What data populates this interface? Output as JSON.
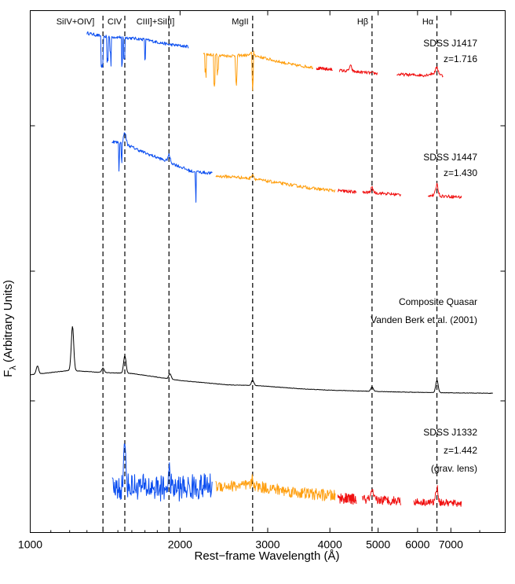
{
  "chart_data": {
    "type": "line",
    "xlabel": "Rest−frame Wavelength (Å)",
    "ylabel_main": "F",
    "ylabel_sub": "λ",
    "ylabel_rest": " (Arbitrary Units)",
    "x_scale": "log",
    "xlim": [
      1000,
      9000
    ],
    "x_ticks": [
      1000,
      2000,
      3000,
      4000,
      5000,
      6000,
      7000
    ],
    "x_tick_labels": [
      "1000",
      "2000",
      "3000",
      "4000",
      "5000",
      "6000",
      "7000"
    ],
    "grid": false,
    "lines": [
      {
        "label": "SiIV+OIV]",
        "wavelength": 1400
      },
      {
        "label": "CIV",
        "wavelength": 1549
      },
      {
        "label": "CIII]+SiIII]",
        "wavelength": 1900
      },
      {
        "label": "MgII",
        "wavelength": 2798
      },
      {
        "label": "Hβ",
        "wavelength": 4861
      },
      {
        "label": "Hα",
        "wavelength": 6563
      }
    ],
    "line_labels": {
      "siiv": "SiIV+OIV]",
      "civ": "CIV",
      "ciii": "CIII]+SiIII]",
      "mgii": "MgII",
      "hbeta": "Hβ",
      "halpha": "Hα"
    },
    "segment_colors": {
      "blue": "#0a4df0",
      "orange": "#ff9f0f",
      "red": "#f01010",
      "black": "#000000"
    },
    "series": [
      {
        "name": "SDSS J1417",
        "label_lines": [
          "SDSS J1417",
          "z=1.716"
        ],
        "segments": [
          {
            "color": "blue",
            "x_range": [
              1300,
              2080
            ],
            "points": [
              [
                1300,
                0.0
              ],
              [
                1400,
                -0.8
              ],
              [
                1549,
                -1.0
              ],
              [
                1700,
                -1.5
              ],
              [
                1900,
                -2.6
              ],
              [
                2080,
                -3.1
              ]
            ],
            "absorption": [
              1390,
              1398,
              1430,
              1450,
              1530,
              1545,
              1700
            ]
          },
          {
            "color": "orange",
            "x_range": [
              2230,
              3700
            ],
            "points": [
              [
                2230,
                -4.8
              ],
              [
                2500,
                -5.2
              ],
              [
                2798,
                -5.0
              ],
              [
                3100,
                -6.3
              ],
              [
                3400,
                -7.3
              ],
              [
                3700,
                -7.8
              ]
            ],
            "absorption": [
              2250,
              2344,
              2382,
              2586,
              2600,
              2796,
              2803
            ]
          },
          {
            "color": "red",
            "x_range": [
              3760,
              4050
            ],
            "points": [
              [
                3760,
                -8.0
              ],
              [
                4050,
                -8.3
              ]
            ]
          },
          {
            "color": "red",
            "x_range": [
              4180,
              4980
            ],
            "points": [
              [
                4180,
                -8.5
              ],
              [
                4861,
                -9.1
              ],
              [
                4980,
                -9.2
              ]
            ]
          },
          {
            "color": "red",
            "x_range": [
              5450,
              6750
            ],
            "points": [
              [
                5450,
                -9.4
              ],
              [
                6200,
                -9.6
              ],
              [
                6563,
                -9.0
              ],
              [
                6750,
                -9.8
              ]
            ]
          }
        ],
        "peaks": [
          {
            "x": 2798,
            "h": 0.9
          },
          {
            "x": 4400,
            "h": 1.2
          },
          {
            "x": 6563,
            "h": 1.2
          }
        ]
      },
      {
        "name": "SDSS J1447",
        "label_lines": [
          "SDSS J1447",
          "z=1.430"
        ],
        "segments": [
          {
            "color": "blue",
            "x_range": [
              1460,
              2320
            ],
            "points": [
              [
                1460,
                0.0
              ],
              [
                1549,
                -0.5
              ],
              [
                1700,
                -2.5
              ],
              [
                1900,
                -4.5
              ],
              [
                2100,
                -6.5
              ],
              [
                2320,
                -7.0
              ]
            ],
            "absorption": [
              1510,
              1525,
              2150
            ]
          },
          {
            "color": "orange",
            "x_range": [
              2360,
              4100
            ],
            "points": [
              [
                2360,
                -7.6
              ],
              [
                2600,
                -7.8
              ],
              [
                2798,
                -8.2
              ],
              [
                3200,
                -9.2
              ],
              [
                3700,
                -10.3
              ],
              [
                4100,
                -10.8
              ]
            ]
          },
          {
            "color": "red",
            "x_range": [
              4150,
              4520
            ],
            "points": [
              [
                4150,
                -10.8
              ],
              [
                4520,
                -11.1
              ]
            ]
          },
          {
            "color": "red",
            "x_range": [
              4650,
              5550
            ],
            "points": [
              [
                4650,
                -11.2
              ],
              [
                4861,
                -11.2
              ],
              [
                5550,
                -11.7
              ]
            ]
          },
          {
            "color": "red",
            "x_range": [
              6300,
              7350
            ],
            "points": [
              [
                6300,
                -11.8
              ],
              [
                6563,
                -11.9
              ],
              [
                7350,
                -12.2
              ]
            ]
          }
        ],
        "peaks": [
          {
            "x": 1549,
            "h": 2.5
          },
          {
            "x": 1900,
            "h": 1.5
          },
          {
            "x": 2798,
            "h": 1.0
          },
          {
            "x": 4861,
            "h": 1.0
          },
          {
            "x": 6563,
            "h": 2.5
          }
        ]
      },
      {
        "name": "Composite Quasar",
        "label_lines": [
          "Composite Quasar",
          "Vanden Berk et al. (2001)"
        ],
        "segments": [
          {
            "color": "black",
            "x_range": [
              1000,
              8500
            ],
            "points": [
              [
                1000,
                -20.5
              ],
              [
                1100,
                -20.0
              ],
              [
                1200,
                -19.5
              ],
              [
                1400,
                -20.0
              ],
              [
                1600,
                -20.2
              ],
              [
                2000,
                -21.8
              ],
              [
                2500,
                -22.8
              ],
              [
                2900,
                -23.0
              ],
              [
                3500,
                -23.7
              ],
              [
                4000,
                -24.0
              ],
              [
                5000,
                -24.3
              ],
              [
                6000,
                -24.5
              ],
              [
                7000,
                -24.6
              ],
              [
                8500,
                -24.7
              ]
            ]
          }
        ],
        "peaks": [
          {
            "x": 1034,
            "h": 1.8
          },
          {
            "x": 1216,
            "h": 10.0
          },
          {
            "x": 1400,
            "h": 1.0
          },
          {
            "x": 1549,
            "h": 4.0
          },
          {
            "x": 1909,
            "h": 1.2
          },
          {
            "x": 2798,
            "h": 1.2
          },
          {
            "x": 4861,
            "h": 1.0
          },
          {
            "x": 6563,
            "h": 2.8
          }
        ]
      },
      {
        "name": "SDSS J1332",
        "label_lines": [
          "SDSS J1332",
          "z=1.442",
          "(grav. lens)"
        ],
        "segments": [
          {
            "color": "blue",
            "x_range": [
              1460,
              2320
            ],
            "points": [
              [
                1460,
                0.0
              ],
              [
                1600,
                0.5
              ],
              [
                1900,
                0.0
              ],
              [
                2320,
                0.5
              ]
            ],
            "noise": 2.2
          },
          {
            "color": "orange",
            "x_range": [
              2360,
              4100
            ],
            "points": [
              [
                2360,
                0.5
              ],
              [
                2800,
                0.5
              ],
              [
                3500,
                -0.7
              ],
              [
                4100,
                -1.2
              ]
            ],
            "noise": 1.0
          },
          {
            "color": "red",
            "x_range": [
              4150,
              4520
            ],
            "points": [
              [
                4150,
                -1.5
              ],
              [
                4520,
                -1.8
              ]
            ],
            "noise": 0.9
          },
          {
            "color": "red",
            "x_range": [
              4650,
              5550
            ],
            "points": [
              [
                4650,
                -1.8
              ],
              [
                5550,
                -2.0
              ]
            ],
            "noise": 0.8
          },
          {
            "color": "red",
            "x_range": [
              5900,
              7350
            ],
            "points": [
              [
                5900,
                -2.2
              ],
              [
                6563,
                -2.3
              ],
              [
                7350,
                -2.5
              ]
            ],
            "noise": 0.6
          }
        ],
        "peaks": [
          {
            "x": 1549,
            "h": 6.5
          },
          {
            "x": 1900,
            "h": 2.5
          },
          {
            "x": 2798,
            "h": 1.0
          },
          {
            "x": 4861,
            "h": 1.2
          },
          {
            "x": 6563,
            "h": 2.5
          }
        ]
      }
    ]
  }
}
